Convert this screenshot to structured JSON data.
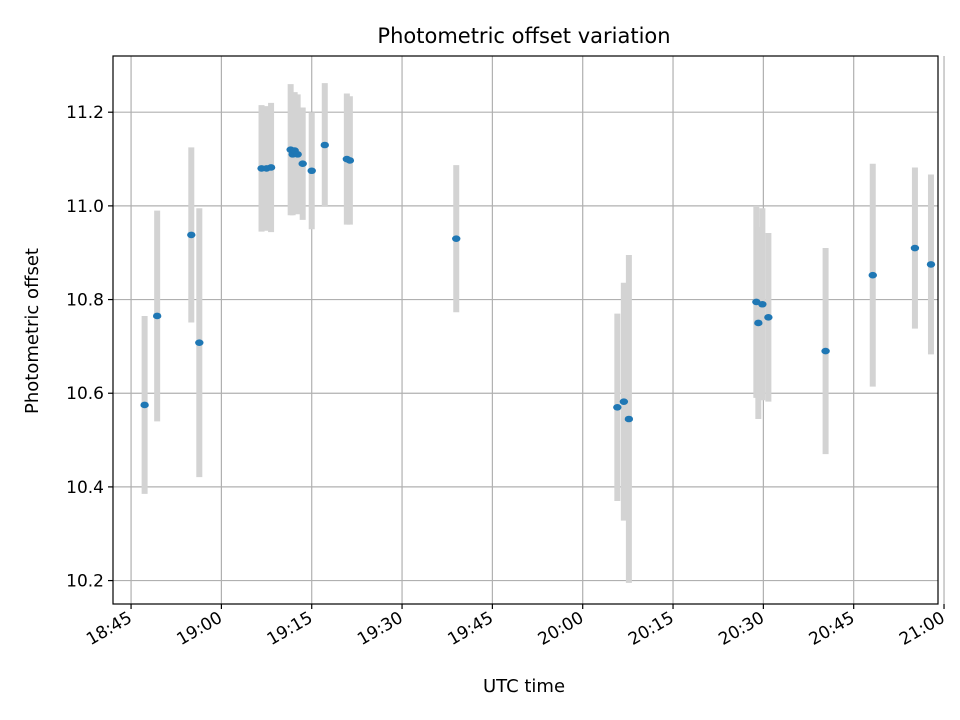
{
  "chart_data": {
    "type": "scatter",
    "title": "Photometric offset variation",
    "xlabel": "UTC time",
    "ylabel": "Photometric offset",
    "xlim": [
      "18:42",
      "20:59"
    ],
    "ylim": [
      10.15,
      11.32
    ],
    "xticks": [
      "18:45",
      "19:00",
      "19:15",
      "19:30",
      "19:45",
      "20:00",
      "20:15",
      "20:30",
      "20:45",
      "21:00"
    ],
    "yticks": [
      "10.2",
      "10.4",
      "10.6",
      "10.8",
      "11.0",
      "11.2"
    ],
    "grid": true,
    "colors": {
      "point": "#1f77b4",
      "errorbar": "#d3d3d3",
      "grid": "#b0b0b0"
    },
    "series": [
      {
        "points": [
          {
            "x": "18:47:15",
            "y": 10.575,
            "err": 0.19
          },
          {
            "x": "18:49:20",
            "y": 10.765,
            "err": 0.225
          },
          {
            "x": "18:55:00",
            "y": 10.938,
            "err": 0.187
          },
          {
            "x": "18:56:20",
            "y": 10.708,
            "err": 0.287
          },
          {
            "x": "19:06:40",
            "y": 11.08,
            "err": 0.135
          },
          {
            "x": "19:07:30",
            "y": 11.08,
            "err": 0.133
          },
          {
            "x": "19:08:15",
            "y": 11.082,
            "err": 0.138
          },
          {
            "x": "19:11:30",
            "y": 11.12,
            "err": 0.14
          },
          {
            "x": "19:11:50",
            "y": 11.11,
            "err": 0.13
          },
          {
            "x": "19:12:10",
            "y": 11.118,
            "err": 0.125
          },
          {
            "x": "19:12:40",
            "y": 11.11,
            "err": 0.128
          },
          {
            "x": "19:13:30",
            "y": 11.09,
            "err": 0.12
          },
          {
            "x": "19:15:00",
            "y": 11.075,
            "err": 0.125
          },
          {
            "x": "19:17:10",
            "y": 11.13,
            "err": 0.132
          },
          {
            "x": "19:20:50",
            "y": 11.1,
            "err": 0.14
          },
          {
            "x": "19:21:20",
            "y": 11.097,
            "err": 0.137
          },
          {
            "x": "19:39:00",
            "y": 10.93,
            "err": 0.157
          },
          {
            "x": "20:05:45",
            "y": 10.57,
            "err": 0.2
          },
          {
            "x": "20:06:50",
            "y": 10.582,
            "err": 0.254
          },
          {
            "x": "20:07:40",
            "y": 10.545,
            "err": 0.35
          },
          {
            "x": "20:28:50",
            "y": 10.795,
            "err": 0.205
          },
          {
            "x": "20:29:10",
            "y": 10.75,
            "err": 0.205
          },
          {
            "x": "20:29:50",
            "y": 10.79,
            "err": 0.205
          },
          {
            "x": "20:30:50",
            "y": 10.762,
            "err": 0.18
          },
          {
            "x": "20:40:20",
            "y": 10.69,
            "err": 0.22
          },
          {
            "x": "20:48:10",
            "y": 10.852,
            "err": 0.238
          },
          {
            "x": "20:55:10",
            "y": 10.91,
            "err": 0.172
          },
          {
            "x": "20:57:50",
            "y": 10.875,
            "err": 0.192
          }
        ]
      }
    ]
  }
}
